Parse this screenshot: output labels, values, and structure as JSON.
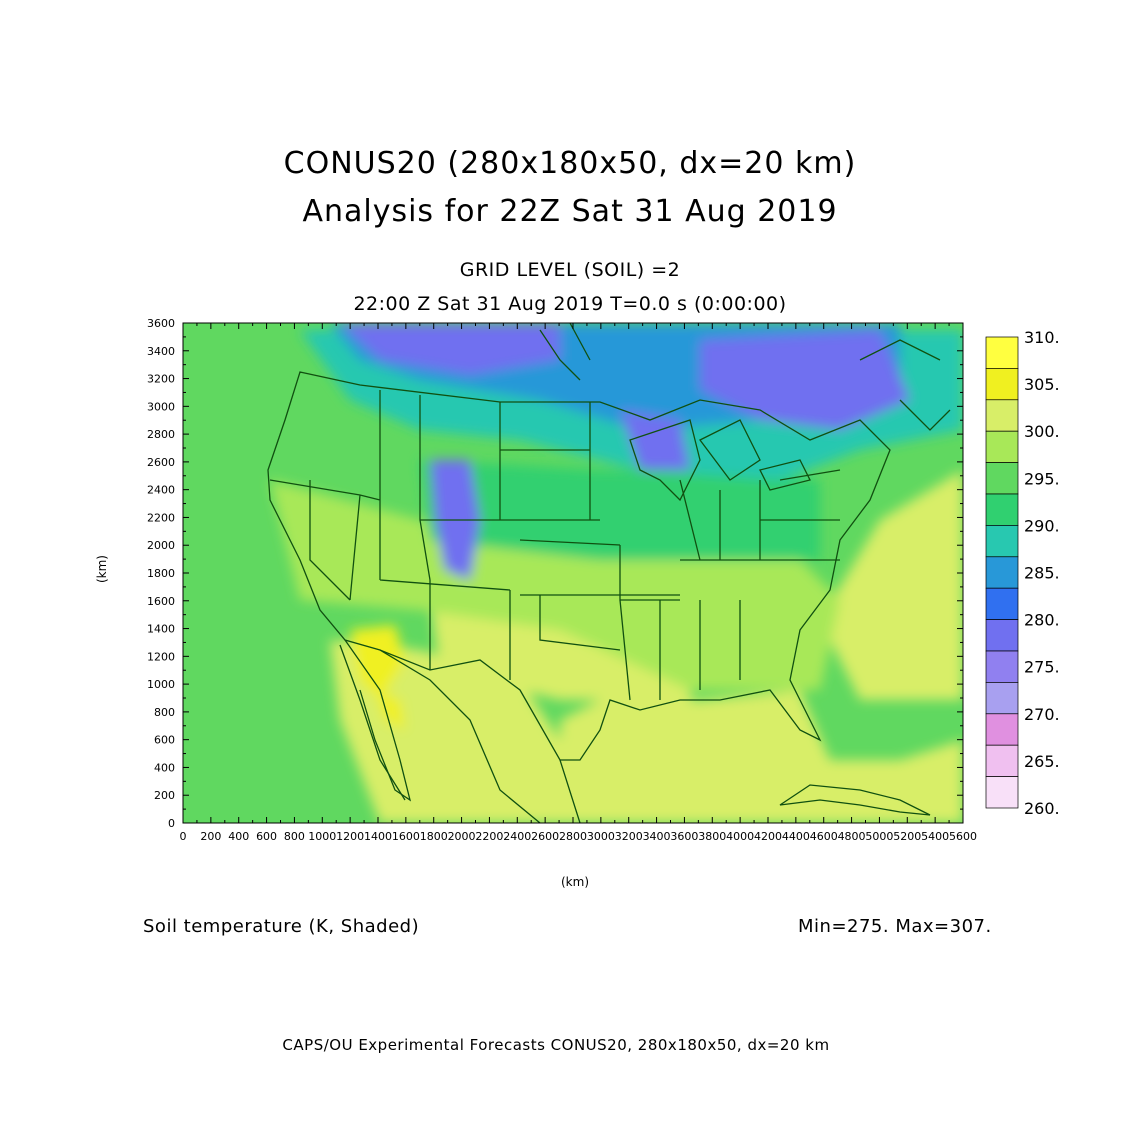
{
  "title_line1": "CONUS20 (280x180x50, dx=20 km)",
  "title_line2": "Analysis for 22Z Sat 31 Aug 2019",
  "grid_level": "GRID LEVEL (SOIL) =2",
  "time_line": "22:00 Z Sat 31 Aug 2019    T=0.0 s (0:00:00)",
  "y_axis_label": "(km)",
  "x_axis_label": "(km)",
  "field_label": "Soil temperature (K, Shaded)",
  "min_max": "Min=275.  Max=307.",
  "footer": "CAPS/OU Experimental Forecasts  CONUS20, 280x180x50, dx=20 km",
  "x_ticks": [
    "0",
    "200",
    "400",
    "600",
    "800",
    "1000",
    "1200",
    "1400",
    "1600",
    "1800",
    "2000",
    "2200",
    "2400",
    "2600",
    "2800",
    "3000",
    "3200",
    "3400",
    "3600",
    "3800",
    "4000",
    "4200",
    "4400",
    "4600",
    "4800",
    "5000",
    "5200",
    "5400",
    "5600"
  ],
  "y_ticks": [
    "0",
    "200",
    "400",
    "600",
    "800",
    "1000",
    "1200",
    "1400",
    "1600",
    "1800",
    "2000",
    "2200",
    "2400",
    "2600",
    "2800",
    "3000",
    "3200",
    "3400",
    "3600"
  ],
  "colorbar": {
    "labels": [
      "310.",
      "305.",
      "300.",
      "295.",
      "290.",
      "285.",
      "280.",
      "275.",
      "270.",
      "265.",
      "260."
    ],
    "colors": [
      "#ffff40",
      "#f0f020",
      "#d8ee68",
      "#a8e858",
      "#60d860",
      "#30d070",
      "#28c8b0",
      "#2898d8",
      "#3070f0",
      "#7070f0",
      "#9080f0",
      "#a8a0f0",
      "#e090e0",
      "#f0c0f0",
      "#f8e0f8"
    ]
  },
  "map_colors": {
    "ocean": "#60d860",
    "warm": "#d8ee68",
    "hot": "#f0f020",
    "mid": "#a8e858",
    "cool": "#30d070",
    "cold": "#28c8b0",
    "colder": "#2898d8",
    "cold_blue": "#7070f0",
    "border": "#105010"
  }
}
